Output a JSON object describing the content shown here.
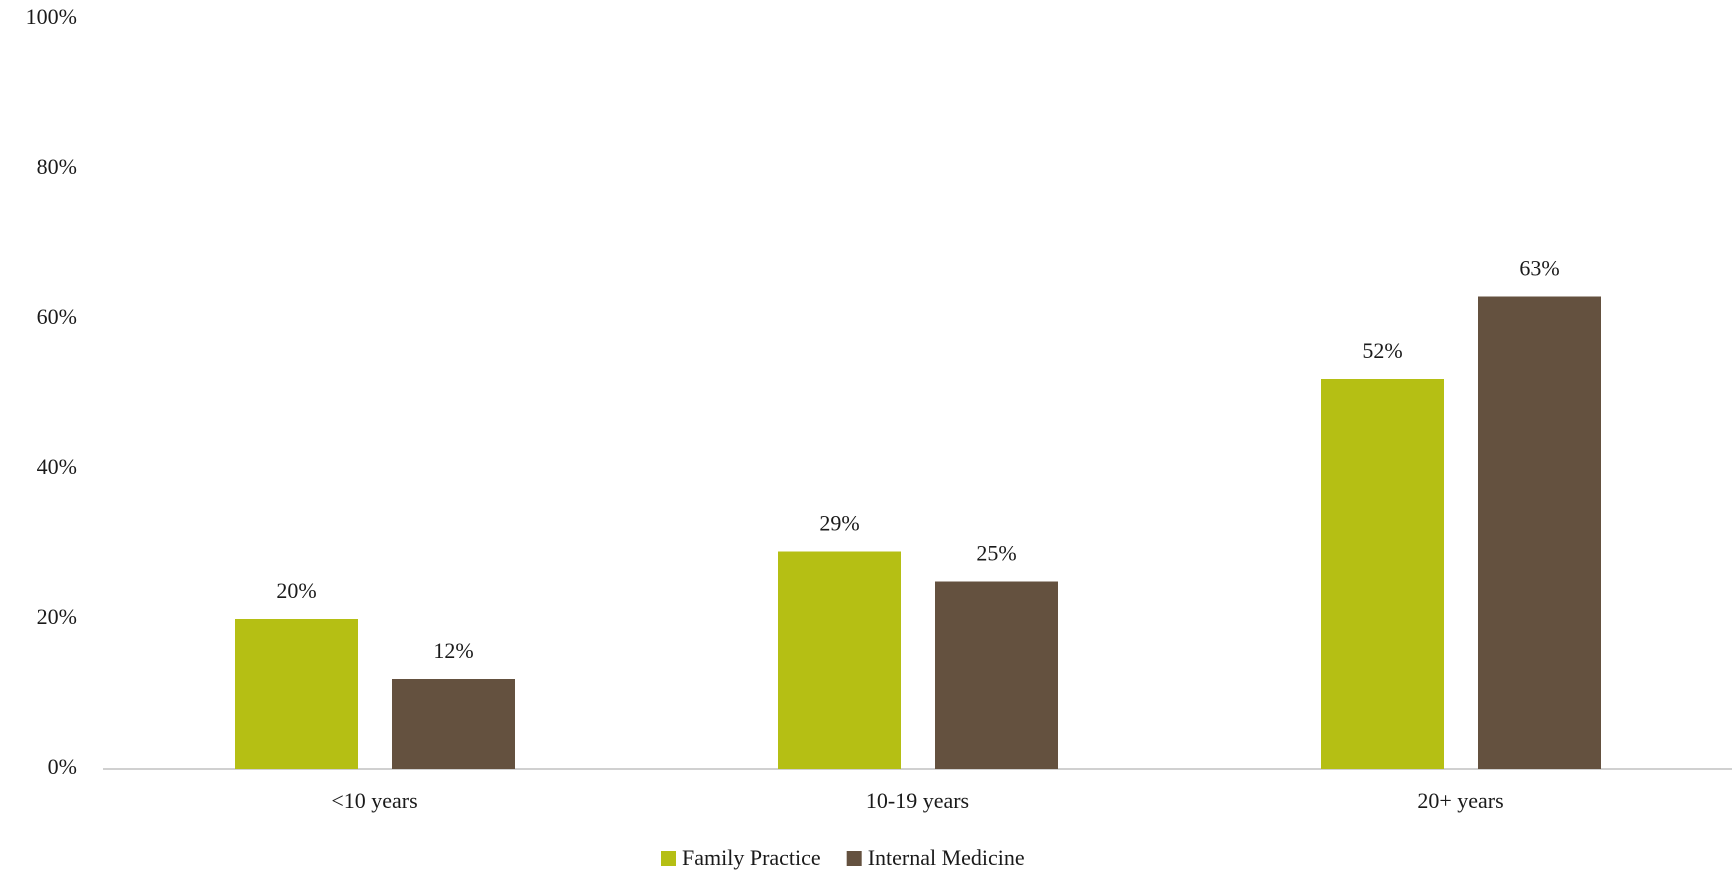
{
  "chart_data": {
    "type": "bar",
    "categories": [
      "<10 years",
      "10-19 years",
      "20+ years"
    ],
    "series": [
      {
        "name": "Family Practice",
        "color": "#b5bf14",
        "values": [
          20,
          29,
          52
        ],
        "value_labels": [
          "20%",
          "29%",
          "52%"
        ]
      },
      {
        "name": "Internal Medicine",
        "color": "#64513f",
        "values": [
          12,
          25,
          63
        ],
        "value_labels": [
          "12%",
          "25%",
          "63%"
        ]
      }
    ],
    "ylim": [
      0,
      100
    ],
    "yticks": [
      {
        "value": 0,
        "label": "0%"
      },
      {
        "value": 20,
        "label": "20%"
      },
      {
        "value": 40,
        "label": "40%"
      },
      {
        "value": 60,
        "label": "60%"
      },
      {
        "value": 80,
        "label": "80%"
      },
      {
        "value": 100,
        "label": "100%"
      }
    ],
    "grid": false,
    "legend": "bottom"
  }
}
